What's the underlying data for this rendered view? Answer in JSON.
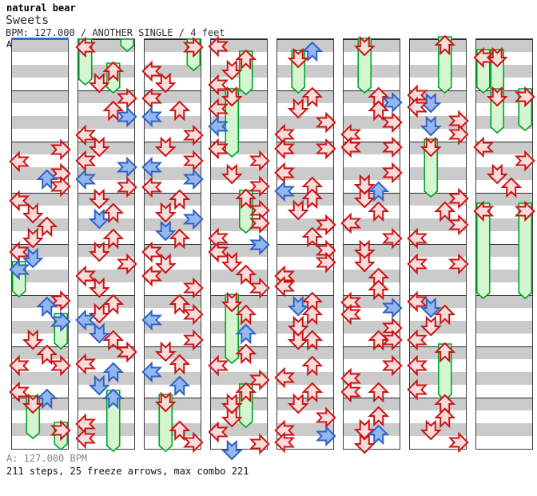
{
  "header": {
    "artist": "natural bear",
    "title": "Sweets",
    "info": "BPM: 127.000 / ANOTHER SINGLE / 4 feet"
  },
  "footer": {
    "bpm": "A: 127.000 BPM",
    "stats": "211 steps, 25 freeze arrows, max combo 221"
  },
  "colors": {
    "red_stroke": "#cc1414",
    "red_fill": "#f9dcdc",
    "blue_stroke": "#2f62c8",
    "blue_fill": "#94b8ee",
    "green_stroke": "#00a22a",
    "green_fill": "#d5f6d0",
    "stripe_gray": "#cbcbcb",
    "measure_line": "#2a2a2a",
    "panel_border": "#3c3c3c",
    "section_marker_blue": "#2d72d2"
  },
  "chart_data": {
    "type": "step-chart",
    "song": "Sweets",
    "bpm": 127.0,
    "difficulty": "ANOTHER SINGLE / 4 feet",
    "section_label": "A",
    "lanes": [
      "left",
      "down",
      "up",
      "right"
    ],
    "measures_per_panel": 8,
    "pixels_per_measure": 64,
    "legend": "note = [lane L/D/U/R, y offset px, color r=red 4th / b=blue 8th / g=headless freeze tail, optional freeze tail y]",
    "panels": [
      {
        "notes": [
          [
            "R",
            138,
            "r"
          ],
          [
            "L",
            153,
            "r"
          ],
          [
            "R",
            168,
            "r"
          ],
          [
            "U",
            175,
            "b"
          ],
          [
            "R",
            184,
            "r"
          ],
          [
            "L",
            202,
            "r"
          ],
          [
            "D",
            218,
            "r"
          ],
          [
            "U",
            234,
            "r"
          ],
          [
            "D",
            249,
            "r"
          ],
          [
            "L",
            266,
            "r"
          ],
          [
            "D",
            274,
            "b"
          ],
          [
            "L",
            288,
            "b",
            315
          ],
          [
            "R",
            327,
            "r"
          ],
          [
            "U",
            334,
            "b"
          ],
          [
            "R",
            353,
            "b",
            380
          ],
          [
            "D",
            376,
            "r"
          ],
          [
            "U",
            394,
            "r"
          ],
          [
            "L",
            408,
            "r"
          ],
          [
            "R",
            408,
            "r"
          ],
          [
            "L",
            441,
            "r"
          ],
          [
            "U",
            449,
            "b"
          ],
          [
            "D",
            456,
            "r",
            492
          ],
          [
            "R",
            489,
            "r",
            506
          ]
        ]
      },
      {
        "notes": [
          [
            "R",
            0,
            "g",
            8
          ],
          [
            "L",
            10,
            "r",
            50
          ],
          [
            "U",
            40,
            "r",
            60
          ],
          [
            "D",
            55,
            "r"
          ],
          [
            "R",
            74,
            "r"
          ],
          [
            "U",
            89,
            "r"
          ],
          [
            "R",
            97,
            "b"
          ],
          [
            "L",
            120,
            "r"
          ],
          [
            "D",
            135,
            "r"
          ],
          [
            "L",
            152,
            "r"
          ],
          [
            "R",
            160,
            "b"
          ],
          [
            "L",
            175,
            "b"
          ],
          [
            "R",
            185,
            "r"
          ],
          [
            "D",
            200,
            "r"
          ],
          [
            "U",
            217,
            "r"
          ],
          [
            "D",
            225,
            "b"
          ],
          [
            "U",
            249,
            "r"
          ],
          [
            "D",
            266,
            "r"
          ],
          [
            "R",
            281,
            "r"
          ],
          [
            "L",
            296,
            "r"
          ],
          [
            "D",
            311,
            "r"
          ],
          [
            "U",
            331,
            "r"
          ],
          [
            "D",
            343,
            "r"
          ],
          [
            "L",
            351,
            "b"
          ],
          [
            "D",
            368,
            "b"
          ],
          [
            "U",
            376,
            "r"
          ],
          [
            "R",
            391,
            "r"
          ],
          [
            "L",
            406,
            "r"
          ],
          [
            "U",
            416,
            "b"
          ],
          [
            "D",
            433,
            "b"
          ],
          [
            "U",
            449,
            "b",
            508
          ],
          [
            "L",
            481,
            "r"
          ],
          [
            "L",
            499,
            "r"
          ]
        ]
      },
      {
        "notes": [
          [
            "R",
            10,
            "r",
            32
          ],
          [
            "L",
            40,
            "r"
          ],
          [
            "D",
            55,
            "r"
          ],
          [
            "L",
            74,
            "r"
          ],
          [
            "U",
            89,
            "r"
          ],
          [
            "L",
            97,
            "b"
          ],
          [
            "R",
            120,
            "r"
          ],
          [
            "D",
            135,
            "r"
          ],
          [
            "R",
            152,
            "r"
          ],
          [
            "L",
            160,
            "b"
          ],
          [
            "R",
            175,
            "b"
          ],
          [
            "L",
            185,
            "r"
          ],
          [
            "U",
            200,
            "r"
          ],
          [
            "D",
            217,
            "r"
          ],
          [
            "R",
            225,
            "b"
          ],
          [
            "D",
            240,
            "b"
          ],
          [
            "U",
            249,
            "r"
          ],
          [
            "L",
            266,
            "r"
          ],
          [
            "D",
            281,
            "r"
          ],
          [
            "L",
            296,
            "r"
          ],
          [
            "R",
            311,
            "r"
          ],
          [
            "U",
            331,
            "r"
          ],
          [
            "R",
            344,
            "r"
          ],
          [
            "L",
            351,
            "b"
          ],
          [
            "R",
            376,
            "r"
          ],
          [
            "D",
            391,
            "r"
          ],
          [
            "U",
            406,
            "r"
          ],
          [
            "L",
            416,
            "b"
          ],
          [
            "U",
            433,
            "b"
          ],
          [
            "D",
            454,
            "r",
            508
          ],
          [
            "U",
            489,
            "r"
          ],
          [
            "R",
            504,
            "r"
          ]
        ]
      },
      {
        "notes": [
          [
            "L",
            9,
            "r"
          ],
          [
            "U",
            25,
            "r",
            62
          ],
          [
            "D",
            39,
            "r"
          ],
          [
            "L",
            57,
            "r"
          ],
          [
            "D",
            72,
            "r",
            140
          ],
          [
            "L",
            87,
            "r"
          ],
          [
            "L",
            109,
            "b"
          ],
          [
            "L",
            137,
            "r"
          ],
          [
            "R",
            152,
            "r"
          ],
          [
            "D",
            169,
            "r"
          ],
          [
            "R",
            184,
            "r"
          ],
          [
            "U",
            199,
            "r",
            235
          ],
          [
            "R",
            214,
            "r"
          ],
          [
            "R",
            230,
            "r"
          ],
          [
            "L",
            249,
            "r"
          ],
          [
            "R",
            257,
            "b"
          ],
          [
            "L",
            266,
            "r"
          ],
          [
            "D",
            279,
            "r"
          ],
          [
            "U",
            294,
            "r"
          ],
          [
            "R",
            311,
            "r"
          ],
          [
            "D",
            329,
            "r",
            398
          ],
          [
            "U",
            344,
            "r"
          ],
          [
            "U",
            368,
            "b"
          ],
          [
            "U",
            393,
            "r"
          ],
          [
            "L",
            408,
            "r"
          ],
          [
            "R",
            426,
            "r"
          ],
          [
            "U",
            441,
            "r",
            478
          ],
          [
            "D",
            456,
            "r"
          ],
          [
            "D",
            473,
            "r"
          ],
          [
            "L",
            491,
            "r"
          ],
          [
            "R",
            506,
            "r"
          ],
          [
            "D",
            514,
            "b"
          ]
        ]
      },
      {
        "notes": [
          [
            "U",
            15,
            "b"
          ],
          [
            "D",
            24,
            "r",
            60
          ],
          [
            "U",
            72,
            "r"
          ],
          [
            "D",
            87,
            "r"
          ],
          [
            "R",
            104,
            "r"
          ],
          [
            "L",
            119,
            "r"
          ],
          [
            "L",
            137,
            "r"
          ],
          [
            "R",
            137,
            "r"
          ],
          [
            "L",
            167,
            "r"
          ],
          [
            "U",
            184,
            "r"
          ],
          [
            "L",
            190,
            "b"
          ],
          [
            "U",
            199,
            "r"
          ],
          [
            "D",
            214,
            "r"
          ],
          [
            "R",
            232,
            "r"
          ],
          [
            "U",
            247,
            "r"
          ],
          [
            "R",
            264,
            "r"
          ],
          [
            "R",
            279,
            "r"
          ],
          [
            "L",
            296,
            "r"
          ],
          [
            "L",
            309,
            "r"
          ],
          [
            "U",
            328,
            "r"
          ],
          [
            "D",
            334,
            "b"
          ],
          [
            "U",
            344,
            "r"
          ],
          [
            "D",
            359,
            "r"
          ],
          [
            "D",
            376,
            "r"
          ],
          [
            "U",
            376,
            "r"
          ],
          [
            "U",
            408,
            "r"
          ],
          [
            "L",
            423,
            "r"
          ],
          [
            "U",
            441,
            "r"
          ],
          [
            "D",
            456,
            "r"
          ],
          [
            "R",
            473,
            "r"
          ],
          [
            "L",
            489,
            "r"
          ],
          [
            "R",
            496,
            "b"
          ],
          [
            "L",
            504,
            "r"
          ]
        ]
      },
      {
        "notes": [
          [
            "D",
            9,
            "r",
            60
          ],
          [
            "U",
            72,
            "r"
          ],
          [
            "R",
            79,
            "b"
          ],
          [
            "U",
            89,
            "r"
          ],
          [
            "R",
            104,
            "r"
          ],
          [
            "L",
            119,
            "r"
          ],
          [
            "L",
            135,
            "r"
          ],
          [
            "R",
            135,
            "r"
          ],
          [
            "R",
            167,
            "r"
          ],
          [
            "D",
            182,
            "r"
          ],
          [
            "U",
            190,
            "b"
          ],
          [
            "D",
            199,
            "r"
          ],
          [
            "U",
            215,
            "r"
          ],
          [
            "L",
            230,
            "r"
          ],
          [
            "R",
            249,
            "r"
          ],
          [
            "D",
            264,
            "r"
          ],
          [
            "D",
            279,
            "r"
          ],
          [
            "U",
            298,
            "r"
          ],
          [
            "U",
            313,
            "r"
          ],
          [
            "L",
            329,
            "r"
          ],
          [
            "R",
            336,
            "b"
          ],
          [
            "L",
            344,
            "r"
          ],
          [
            "R",
            361,
            "r"
          ],
          [
            "U",
            376,
            "r"
          ],
          [
            "R",
            376,
            "r"
          ],
          [
            "R",
            408,
            "r"
          ],
          [
            "L",
            424,
            "r"
          ],
          [
            "L",
            441,
            "r"
          ],
          [
            "U",
            441,
            "r"
          ],
          [
            "U",
            471,
            "r"
          ],
          [
            "D",
            488,
            "r"
          ],
          [
            "U",
            494,
            "b"
          ],
          [
            "D",
            506,
            "r"
          ]
        ]
      },
      {
        "notes": [
          [
            "U",
            7,
            "r",
            60
          ],
          [
            "L",
            70,
            "r"
          ],
          [
            "D",
            80,
            "b"
          ],
          [
            "L",
            85,
            "r"
          ],
          [
            "R",
            102,
            "r"
          ],
          [
            "D",
            109,
            "b"
          ],
          [
            "R",
            119,
            "r"
          ],
          [
            "D",
            135,
            "r",
            190
          ],
          [
            "R",
            199,
            "r"
          ],
          [
            "U",
            215,
            "r"
          ],
          [
            "R",
            232,
            "r"
          ],
          [
            "L",
            249,
            "r"
          ],
          [
            "L",
            281,
            "r"
          ],
          [
            "R",
            281,
            "r"
          ],
          [
            "L",
            328,
            "r"
          ],
          [
            "D",
            336,
            "b"
          ],
          [
            "U",
            344,
            "r"
          ],
          [
            "D",
            359,
            "r"
          ],
          [
            "L",
            376,
            "r"
          ],
          [
            "U",
            391,
            "r",
            444
          ],
          [
            "L",
            408,
            "r"
          ],
          [
            "L",
            438,
            "r"
          ],
          [
            "U",
            456,
            "r"
          ],
          [
            "U",
            473,
            "r"
          ],
          [
            "D",
            489,
            "r"
          ],
          [
            "R",
            504,
            "r"
          ]
        ]
      },
      {
        "notes": [
          [
            "L",
            23,
            "r",
            60
          ],
          [
            "D",
            23,
            "r",
            62
          ],
          [
            "D",
            72,
            "r",
            110
          ],
          [
            "R",
            72,
            "r",
            107
          ],
          [
            "L",
            135,
            "r"
          ],
          [
            "R",
            152,
            "r"
          ],
          [
            "D",
            169,
            "r"
          ],
          [
            "U",
            185,
            "r"
          ],
          [
            "L",
            215,
            "r",
            317
          ],
          [
            "R",
            215,
            "r",
            317
          ]
        ]
      }
    ]
  }
}
